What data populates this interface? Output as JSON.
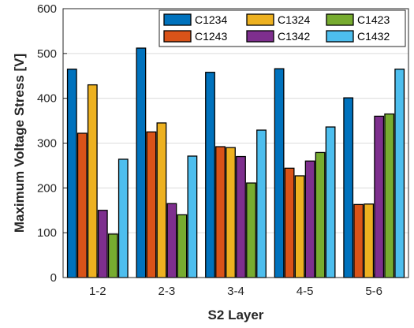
{
  "chart_data": {
    "type": "bar",
    "xlabel": "S2 Layer",
    "ylabel": "Maximum Voltage Stress [V]",
    "categories": [
      "1-2",
      "2-3",
      "3-4",
      "4-5",
      "5-6"
    ],
    "ylim": [
      0,
      600
    ],
    "yticks": [
      0,
      100,
      200,
      300,
      400,
      500,
      600
    ],
    "grid": true,
    "legend_position": "top-right",
    "series": [
      {
        "name": "C1234",
        "color": "#0072BD",
        "values": [
          465,
          512,
          458,
          466,
          401
        ]
      },
      {
        "name": "C1243",
        "color": "#D95319",
        "values": [
          322,
          325,
          292,
          244,
          163
        ]
      },
      {
        "name": "C1324",
        "color": "#EDB120",
        "values": [
          430,
          345,
          290,
          227,
          164
        ]
      },
      {
        "name": "C1342",
        "color": "#7E2F8E",
        "values": [
          150,
          165,
          270,
          260,
          360
        ]
      },
      {
        "name": "C1423",
        "color": "#77AC30",
        "values": [
          97,
          140,
          211,
          279,
          365
        ]
      },
      {
        "name": "C1432",
        "color": "#4DBEEE",
        "values": [
          264,
          271,
          329,
          336,
          465
        ]
      }
    ]
  }
}
